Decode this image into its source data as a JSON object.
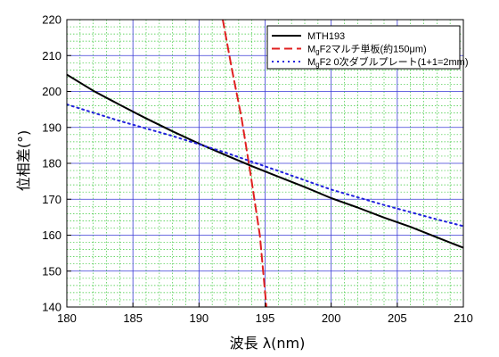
{
  "chart_data": {
    "type": "line",
    "title": "",
    "xlabel": "波長 λ(nm)",
    "ylabel": "位相差(°)",
    "xlim": [
      180,
      210
    ],
    "ylim": [
      140,
      220
    ],
    "x_ticks": [
      180,
      185,
      190,
      195,
      200,
      205,
      210
    ],
    "y_ticks": [
      140,
      150,
      160,
      170,
      180,
      190,
      200,
      210,
      220
    ],
    "x_tick_labels": [
      "180",
      "185",
      "190",
      "195",
      "200",
      "205",
      "210"
    ],
    "y_tick_labels": [
      "140",
      "150",
      "160",
      "170",
      "180",
      "190",
      "200",
      "210",
      "220"
    ],
    "grid": {
      "major": true,
      "minor": true,
      "major_color": "#3b3bd6",
      "minor_color": "#3cc83c"
    },
    "legend_position": "top-right",
    "series": [
      {
        "name": "MTH193",
        "legend_label": {
          "prefix": "MTH193",
          "subscript": "",
          "suffix": ""
        },
        "color": "#000000",
        "dash": "solid",
        "x": [
          180,
          182,
          184,
          186,
          188,
          190,
          192,
          194,
          196,
          198,
          200,
          202,
          204,
          206,
          208,
          210
        ],
        "values": [
          204.7,
          200.2,
          196.3,
          192.5,
          188.9,
          185.5,
          182.3,
          179.2,
          176.3,
          173.4,
          170.3,
          167.7,
          164.9,
          162.3,
          159.4,
          156.5
        ]
      },
      {
        "name": "MgF2マルチ単板(約150μm)",
        "legend_label": {
          "prefix": "M",
          "subscript": "g",
          "suffix": "F2マルチ単板(約150μm)"
        },
        "color": "#e02020",
        "dash": "dashed",
        "x": [
          191.8,
          192.5,
          193.2,
          193.9,
          194.6,
          195.1
        ],
        "values": [
          220,
          206,
          193,
          177,
          160,
          140
        ]
      },
      {
        "name": "MgF2 0次ダブルプレート(1+1=2mm)",
        "legend_label": {
          "prefix": "M",
          "subscript": "g",
          "suffix": "F2 0次ダブルプレート(1+1=2mm)"
        },
        "color": "#2222dd",
        "dash": "dotted",
        "x": [
          180,
          184,
          188,
          192,
          196,
          200,
          204,
          208,
          210
        ],
        "values": [
          196.4,
          191.8,
          187.6,
          183.0,
          177.9,
          172.7,
          168.4,
          164.4,
          162.5
        ]
      }
    ]
  }
}
